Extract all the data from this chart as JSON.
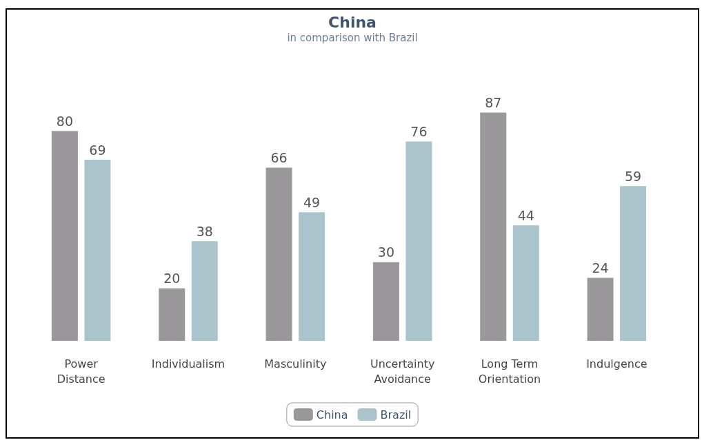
{
  "chart_data": {
    "type": "bar",
    "title": "China",
    "subtitle": "in comparison with Brazil",
    "categories": [
      "Power\nDistance",
      "Individualism",
      "Masculinity",
      "Uncertainty\nAvoidance",
      "Long Term\nOrientation",
      "Indulgence"
    ],
    "series": [
      {
        "name": "China",
        "color": "#9a989a",
        "values": [
          80,
          20,
          66,
          30,
          87,
          24
        ]
      },
      {
        "name": "Brazil",
        "color": "#a9c4ca",
        "values": [
          69,
          38,
          49,
          76,
          44,
          59
        ]
      }
    ],
    "data_labels": true,
    "legend": "bottom"
  }
}
